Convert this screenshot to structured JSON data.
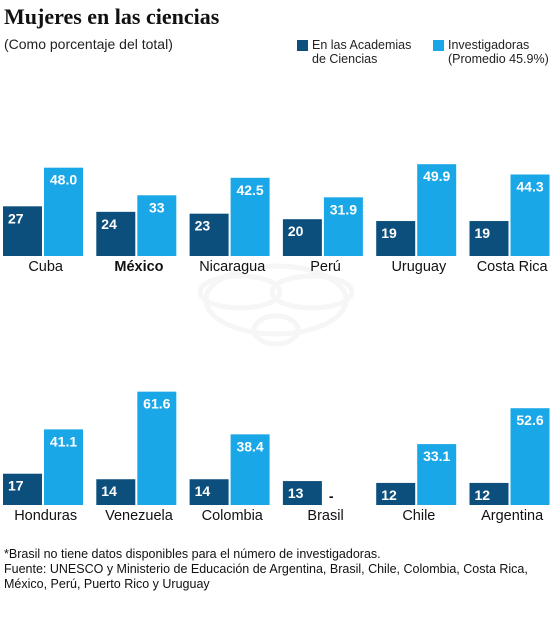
{
  "title": "Mujeres en las ciencias",
  "subtitle": "(Como porcentaje del total)",
  "colors": {
    "academias": "#0c4f7c",
    "investigadoras": "#1aa7e8",
    "watermark": "#eeeeee"
  },
  "legend": [
    {
      "label_line1": "En las Academias",
      "label_line2": "de Ciencias"
    },
    {
      "label_line1": "Investigadoras",
      "label_line2": "(Promedio 45.9%)"
    }
  ],
  "chart_data": {
    "type": "bar",
    "series": [
      {
        "name": "En las Academias de Ciencias"
      },
      {
        "name": "Investigadoras (Promedio 45.9%)"
      }
    ],
    "countries": [
      {
        "name": "Cuba",
        "academias": 27,
        "academias_label": "27",
        "investigadoras": 48.0,
        "investigadoras_label": "48.0",
        "bold": false
      },
      {
        "name": "México",
        "academias": 24,
        "academias_label": "24",
        "investigadoras": 33,
        "investigadoras_label": "33",
        "bold": true
      },
      {
        "name": "Nicaragua",
        "academias": 23,
        "academias_label": "23",
        "investigadoras": 42.5,
        "investigadoras_label": "42.5",
        "bold": false
      },
      {
        "name": "Perú",
        "academias": 20,
        "academias_label": "20",
        "investigadoras": 31.9,
        "investigadoras_label": "31.9",
        "bold": false
      },
      {
        "name": "Uruguay",
        "academias": 19,
        "academias_label": "19",
        "investigadoras": 49.9,
        "investigadoras_label": "49.9",
        "bold": false
      },
      {
        "name": "Costa Rica",
        "academias": 19,
        "academias_label": "19",
        "investigadoras": 44.3,
        "investigadoras_label": "44.3",
        "bold": false
      },
      {
        "name": "Honduras",
        "academias": 17,
        "academias_label": "17",
        "investigadoras": 41.1,
        "investigadoras_label": "41.1",
        "bold": false
      },
      {
        "name": "Venezuela",
        "academias": 14,
        "academias_label": "14",
        "investigadoras": 61.6,
        "investigadoras_label": "61.6",
        "bold": false
      },
      {
        "name": "Colombia",
        "academias": 14,
        "academias_label": "14",
        "investigadoras": 38.4,
        "investigadoras_label": "38.4",
        "bold": false
      },
      {
        "name": "Brasil",
        "academias": 13,
        "academias_label": "13",
        "investigadoras": null,
        "investigadoras_label": "-",
        "bold": false
      },
      {
        "name": "Chile",
        "academias": 12,
        "academias_label": "12",
        "investigadoras": 33.1,
        "investigadoras_label": "33.1",
        "bold": false
      },
      {
        "name": "Argentina",
        "academias": 12,
        "academias_label": "12",
        "investigadoras": 52.6,
        "investigadoras_label": "52.6",
        "bold": false
      }
    ]
  },
  "notes": {
    "brasil": "*Brasil no tiene datos disponibles para el número de investigadoras.",
    "fuente": "Fuente: UNESCO y Ministerio de Educación de Argentina, Brasil, Chile, Colombia, Costa Rica, México, Perú, Puerto Rico y Uruguay"
  }
}
